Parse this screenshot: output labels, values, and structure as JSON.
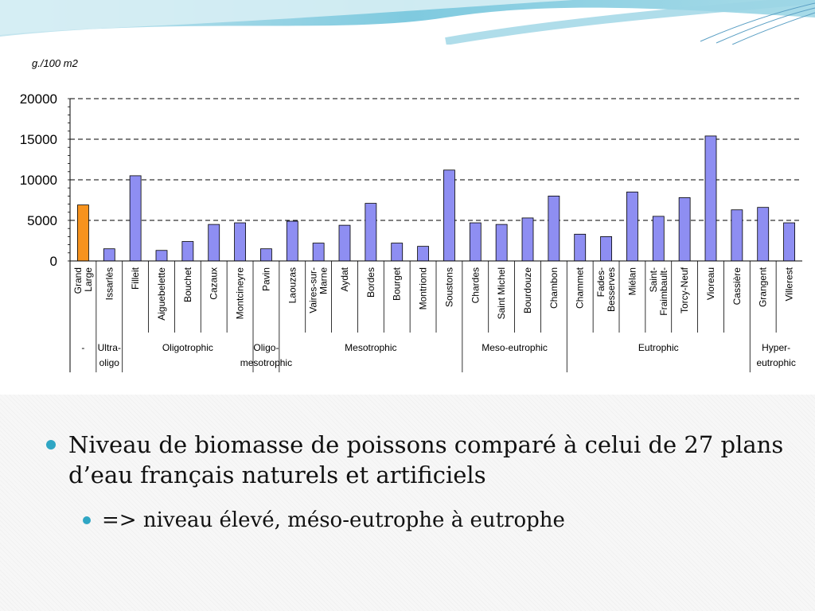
{
  "slide": {
    "bullets": [
      {
        "text": "Niveau de biomasse de poissons comparé à celui de 27 plans d’eau français naturels et artificiels",
        "sub": [
          "=> niveau élevé, méso-eutrophe à eutrophe"
        ]
      }
    ],
    "bullet_color": "#2fa6c4"
  },
  "chart_data": {
    "type": "bar",
    "ylabel": "g./100 m2",
    "ylim": [
      0,
      20000
    ],
    "yticks": [
      0,
      5000,
      10000,
      15000,
      20000
    ],
    "grid": "dashed horizontal",
    "categories": [
      "Grand Large",
      "Issarlès",
      "Filleit",
      "Aiguebelette",
      "Bouchet",
      "Cazaux",
      "Montcineyre",
      "Pavin",
      "Laouzas",
      "Vaires-sur-Marne",
      "Aydat",
      "Bordes",
      "Bourget",
      "Montriond",
      "Soustons",
      "Chardes",
      "Saint Michel",
      "Bourdouze",
      "Chambon",
      "Chammet",
      "Fades-Besserves",
      "Miélan",
      "Saint-Fraimbault-",
      "Torcy-Neuf",
      "Vioreau",
      "Cassière",
      "Grangent",
      "Villerest"
    ],
    "category_labels": [
      [
        "Grand",
        "Large"
      ],
      [
        "Issarlès"
      ],
      [
        "Filleit"
      ],
      [
        "Aiguebelette"
      ],
      [
        "Bouchet"
      ],
      [
        "Cazaux"
      ],
      [
        "Montcineyre"
      ],
      [
        "Pavin"
      ],
      [
        "Laouzas"
      ],
      [
        "Vaires-sur-",
        "Marne"
      ],
      [
        "Aydat"
      ],
      [
        "Bordes"
      ],
      [
        "Bourget"
      ],
      [
        "Montriond"
      ],
      [
        "Soustons"
      ],
      [
        "Chardes"
      ],
      [
        "Saint Michel"
      ],
      [
        "Bourdouze"
      ],
      [
        "Chambon"
      ],
      [
        "Chammet"
      ],
      [
        "Fades-",
        "Besserves"
      ],
      [
        "Miélan"
      ],
      [
        "Saint-",
        "Fraimbault-"
      ],
      [
        "Torcy-Neuf"
      ],
      [
        "Vioreau"
      ],
      [
        "Cassière"
      ],
      [
        "Grangent"
      ],
      [
        "Villerest"
      ]
    ],
    "values": [
      6900,
      1500,
      10500,
      1300,
      2400,
      4500,
      4700,
      1500,
      4900,
      2200,
      4400,
      7100,
      2200,
      1800,
      11200,
      4700,
      4500,
      5300,
      8000,
      3300,
      3000,
      8500,
      5500,
      7800,
      15400,
      6300,
      6600,
      4700
    ],
    "colors": {
      "highlight": "#f7931e",
      "bar": "#8e8ef2",
      "stroke": "#000000"
    },
    "highlight_index": 0,
    "groups": [
      {
        "label": [
          "-"
        ],
        "start": 0,
        "end": 0
      },
      {
        "label": [
          "Ultra-",
          "oligo"
        ],
        "start": 1,
        "end": 1
      },
      {
        "label": [
          "Oligotrophic"
        ],
        "start": 2,
        "end": 6
      },
      {
        "label": [
          "Oligo-",
          "mesotrophic"
        ],
        "start": 7,
        "end": 7
      },
      {
        "label": [
          "Mesotrophic"
        ],
        "start": 8,
        "end": 14
      },
      {
        "label": [
          "Meso-eutrophic"
        ],
        "start": 15,
        "end": 18
      },
      {
        "label": [
          "Eutrophic"
        ],
        "start": 19,
        "end": 25
      },
      {
        "label": [
          "Hyper-",
          "eutrophic"
        ],
        "start": 26,
        "end": 27
      }
    ]
  }
}
